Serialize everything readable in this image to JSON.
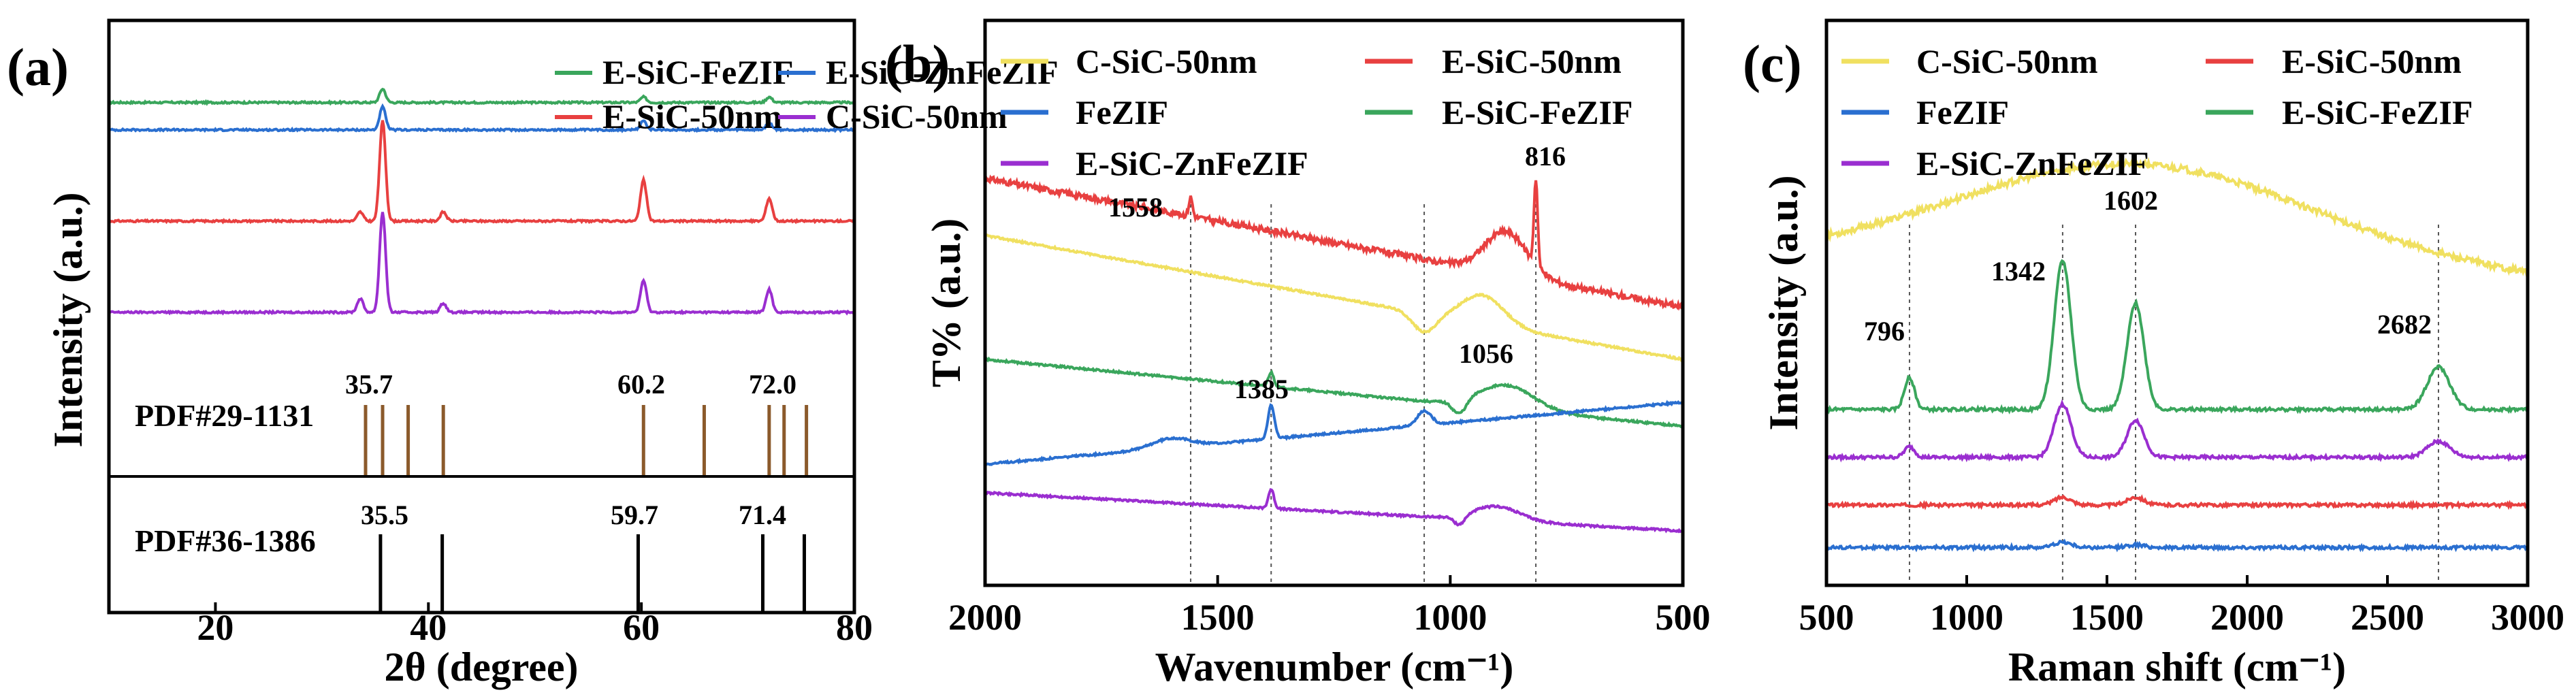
{
  "chart_data": [
    {
      "panel": "(a)",
      "type": "line",
      "xlabel": "2θ (degree)",
      "ylabel": "Intensity (a.u.)",
      "xlim": [
        10,
        80
      ],
      "xticks": [
        "20",
        "40",
        "60",
        "80"
      ],
      "legend": [
        "E-SiC-FeZIF",
        "E-SiC-ZnFeZIF",
        "E-SiC-50nm",
        "C-SiC-50nm"
      ],
      "colors": {
        "E-SiC-FeZIF": "#3aa65c",
        "E-SiC-ZnFeZIF": "#2a6fd0",
        "E-SiC-50nm": "#e84040",
        "C-SiC-50nm": "#9a2ed0",
        "pdf1": "#8b5a2b",
        "pdf2": "#000000"
      },
      "series": [
        {
          "name": "E-SiC-FeZIF",
          "offset": 0.82,
          "peaks": [
            [
              35.7,
              0.03
            ],
            [
              60.2,
              0.012
            ],
            [
              72.0,
              0.012
            ]
          ]
        },
        {
          "name": "E-SiC-ZnFeZIF",
          "offset": 0.76,
          "peaks": [
            [
              35.7,
              0.05
            ],
            [
              60.2,
              0.02
            ],
            [
              72.0,
              0.015
            ]
          ]
        },
        {
          "name": "E-SiC-50nm",
          "offset": 0.56,
          "peaks": [
            [
              35.7,
              0.22
            ],
            [
              60.2,
              0.09
            ],
            [
              72.0,
              0.05
            ],
            [
              41.4,
              0.02
            ],
            [
              33.6,
              0.02
            ]
          ]
        },
        {
          "name": "C-SiC-50nm",
          "offset": 0.36,
          "peaks": [
            [
              35.7,
              0.22
            ],
            [
              60.2,
              0.07
            ],
            [
              72.0,
              0.05
            ],
            [
              41.4,
              0.02
            ],
            [
              33.6,
              0.03
            ]
          ]
        }
      ],
      "reference_patterns": [
        {
          "label": "PDF#29-1131",
          "lines": [
            34.1,
            35.7,
            38.1,
            41.4,
            60.2,
            65.9,
            72.0,
            73.4,
            75.5
          ]
        },
        {
          "label": "PDF#36-1386",
          "lines": [
            35.5,
            41.3,
            59.7,
            71.4,
            75.3
          ]
        }
      ],
      "annotations": [
        "35.7",
        "60.2",
        "72.0",
        "35.5",
        "59.7",
        "71.4"
      ]
    },
    {
      "panel": "(b)",
      "type": "line",
      "xlabel": "Wavenumber (cm⁻¹)",
      "ylabel": "T% (a.u.)",
      "xlim": [
        2000,
        500
      ],
      "xticks": [
        "2000",
        "1500",
        "1000",
        "500"
      ],
      "legend": [
        "C-SiC-50nm",
        "E-SiC-50nm",
        "FeZIF",
        "E-SiC-FeZIF",
        "E-SiC-ZnFeZIF"
      ],
      "colors": {
        "C-SiC-50nm": "#f0e060",
        "E-SiC-50nm": "#e84040",
        "FeZIF": "#2a6fd0",
        "E-SiC-FeZIF": "#3aa65c",
        "E-SiC-ZnFeZIF": "#9a2ed0"
      },
      "series": [
        {
          "name": "E-SiC-50nm",
          "start": 0.74,
          "end": 0.47
        },
        {
          "name": "C-SiC-50nm",
          "start": 0.62,
          "end": 0.36
        },
        {
          "name": "E-SiC-FeZIF",
          "start": 0.36,
          "end": 0.22
        },
        {
          "name": "FeZIF",
          "start": 0.14,
          "end": 0.27
        },
        {
          "name": "E-SiC-ZnFeZIF",
          "start": 0.08,
          "end": 0.0
        }
      ],
      "marker_lines": [
        1558,
        1385,
        1056,
        816
      ],
      "annotations": [
        "1558",
        "816",
        "1056",
        "1385"
      ]
    },
    {
      "panel": "(c)",
      "type": "line",
      "xlabel": "Raman shift (cm⁻¹)",
      "ylabel": "Intensity (a.u.)",
      "xlim": [
        500,
        3000
      ],
      "xticks": [
        "500",
        "1000",
        "1500",
        "2000",
        "2500",
        "3000"
      ],
      "legend": [
        "C-SiC-50nm",
        "E-SiC-50nm",
        "FeZIF",
        "E-SiC-FeZIF",
        "E-SiC-ZnFeZIF"
      ],
      "colors": {
        "C-SiC-50nm": "#f0e060",
        "E-SiC-50nm": "#e84040",
        "FeZIF": "#2a6fd0",
        "E-SiC-FeZIF": "#3aa65c",
        "E-SiC-ZnFeZIF": "#9a2ed0"
      },
      "series": [
        {
          "name": "C-SiC-50nm",
          "base": 0.56,
          "hump": 0.2,
          "peaks": []
        },
        {
          "name": "E-SiC-FeZIF",
          "base": 0.28,
          "peaks": [
            [
              796,
              0.06
            ],
            [
              1342,
              0.28
            ],
            [
              1602,
              0.2
            ],
            [
              2682,
              0.08
            ]
          ]
        },
        {
          "name": "E-SiC-ZnFeZIF",
          "base": 0.19,
          "peaks": [
            [
              796,
              0.02
            ],
            [
              1342,
              0.1
            ],
            [
              1602,
              0.07
            ],
            [
              2682,
              0.03
            ]
          ]
        },
        {
          "name": "E-SiC-50nm",
          "base": 0.1,
          "peaks": [
            [
              1342,
              0.015
            ],
            [
              1602,
              0.015
            ]
          ]
        },
        {
          "name": "FeZIF",
          "base": 0.02,
          "peaks": [
            [
              1342,
              0.01
            ],
            [
              1602,
              0.005
            ]
          ]
        }
      ],
      "marker_lines": [
        796,
        1342,
        1602,
        2682
      ],
      "annotations": [
        "796",
        "1342",
        "1602",
        "2682"
      ]
    }
  ]
}
